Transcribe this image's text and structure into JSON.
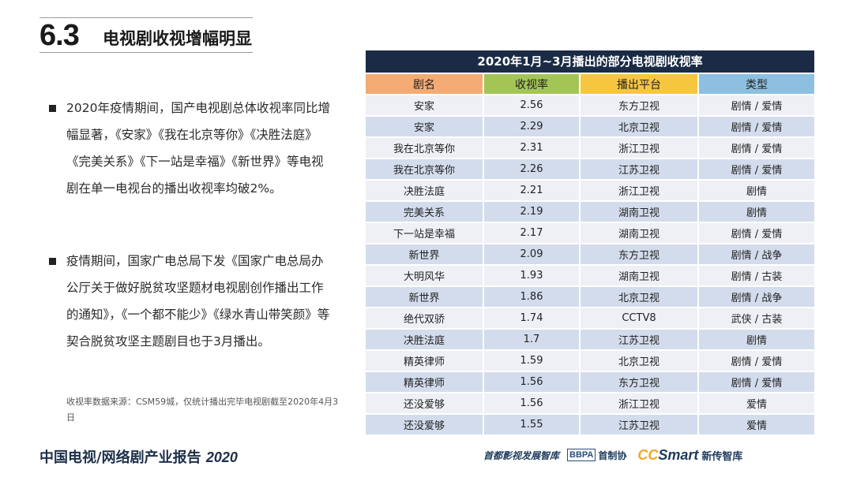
{
  "section": {
    "number": "6.3",
    "title": "电视剧收视增幅明显"
  },
  "bullets": [
    "2020年疫情期间，国产电视剧总体收视率同比增幅显著，《安家》《我在北京等你》《决胜法庭》《完美关系》《下一站是幸福》《新世界》等电视剧在单一电视台的播出收视率均破2%。",
    "疫情期间，国家广电总局下发《国家广电总局办公厅关于做好脱贫攻坚题材电视剧创作播出工作的通知》，《一个都不能少》《绿水青山带笑颜》等契合脱贫攻坚主题剧目也于3月播出。"
  ],
  "source_note": "收视率数据来源：CSM59城，仅统计播出完毕电视剧截至2020年4月3日",
  "footer": {
    "report_title": "中国电视/网络剧产业报告",
    "year": "2020"
  },
  "logos": {
    "logo1": "首都影视发展智库",
    "bbpa": "BBPA",
    "logo2": "首制协",
    "ccsmart_cc": "CC",
    "ccsmart_smart": "Smart",
    "logo4": "新传智库"
  },
  "table": {
    "title": "2020年1月~3月播出的部分电视剧收视率",
    "headers": [
      "剧名",
      "收视率",
      "播出平台",
      "类型"
    ],
    "header_colors": [
      "#f4ab73",
      "#a3c556",
      "#f7c63f",
      "#8dc0e0"
    ],
    "rows": [
      [
        "安家",
        "2.56",
        "东方卫视",
        "剧情 / 爱情"
      ],
      [
        "安家",
        "2.29",
        "北京卫视",
        "剧情 / 爱情"
      ],
      [
        "我在北京等你",
        "2.31",
        "浙江卫视",
        "剧情 / 爱情"
      ],
      [
        "我在北京等你",
        "2.26",
        "江苏卫视",
        "剧情 / 爱情"
      ],
      [
        "决胜法庭",
        "2.21",
        "浙江卫视",
        "剧情"
      ],
      [
        "完美关系",
        "2.19",
        "湖南卫视",
        "剧情"
      ],
      [
        "下一站是幸福",
        "2.17",
        "湖南卫视",
        "剧情 / 爱情"
      ],
      [
        "新世界",
        "2.09",
        "东方卫视",
        "剧情 / 战争"
      ],
      [
        "大明风华",
        "1.93",
        "湖南卫视",
        "剧情 / 古装"
      ],
      [
        "新世界",
        "1.86",
        "北京卫视",
        "剧情 / 战争"
      ],
      [
        "绝代双骄",
        "1.74",
        "CCTV8",
        "武侠 / 古装"
      ],
      [
        "决胜法庭",
        "1.7",
        "江苏卫视",
        "剧情"
      ],
      [
        "精英律师",
        "1.59",
        "北京卫视",
        "剧情 / 爱情"
      ],
      [
        "精英律师",
        "1.56",
        "东方卫视",
        "剧情 / 爱情"
      ],
      [
        "还没爱够",
        "1.56",
        "浙江卫视",
        "爱情"
      ],
      [
        "还没爱够",
        "1.55",
        "江苏卫视",
        "爱情"
      ]
    ]
  }
}
